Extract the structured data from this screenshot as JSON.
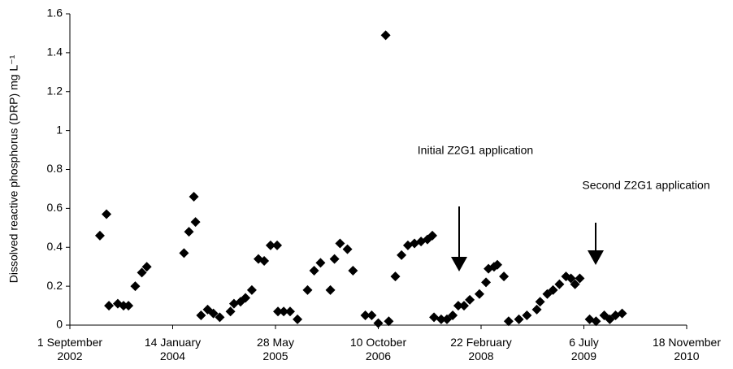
{
  "chart_data": {
    "type": "scatter",
    "y_label": "Dissolved reactive phosphorus (DRP) mg L⁻¹",
    "annotations": [
      "Initial Z2G1 application",
      "Second Z2G1 application"
    ],
    "color": "#000000",
    "grid": false,
    "x": [
      "2003-01-25",
      "2003-02-26",
      "2003-03-10",
      "2003-04-22",
      "2003-05-20",
      "2003-06-13",
      "2003-07-16",
      "2003-08-17",
      "2003-09-10",
      "2004-03-09",
      "2004-04-02",
      "2004-04-26",
      "2004-05-04",
      "2004-05-31",
      "2004-07-02",
      "2004-07-30",
      "2004-08-30",
      "2004-10-21",
      "2004-11-07",
      "2004-12-09",
      "2005-01-02",
      "2005-02-02",
      "2005-03-06",
      "2005-04-03",
      "2005-05-04",
      "2005-06-05",
      "2005-06-09",
      "2005-07-07",
      "2005-08-07",
      "2005-09-12",
      "2005-10-31",
      "2005-12-02",
      "2006-01-02",
      "2006-02-19",
      "2006-03-11",
      "2006-04-07",
      "2006-05-13",
      "2006-06-09",
      "2006-08-08",
      "2006-09-08",
      "2006-10-10",
      "2006-11-15",
      "2006-11-30",
      "2007-01-01",
      "2007-01-31",
      "2007-03-03",
      "2007-04-04",
      "2007-05-06",
      "2007-06-06",
      "2007-06-30",
      "2007-07-08",
      "2007-08-12",
      "2007-09-09",
      "2007-10-07",
      "2007-11-03",
      "2007-12-01",
      "2007-12-29",
      "2008-02-14",
      "2008-03-17",
      "2008-03-29",
      "2008-04-25",
      "2008-05-11",
      "2008-06-12",
      "2008-07-05",
      "2008-08-24",
      "2008-10-02",
      "2008-11-19",
      "2008-12-05",
      "2009-01-09",
      "2009-02-06",
      "2009-03-09",
      "2009-04-10",
      "2009-05-04",
      "2009-05-24",
      "2009-06-16",
      "2009-08-03",
      "2009-09-03",
      "2009-10-13",
      "2009-11-09",
      "2009-12-07",
      "2010-01-08"
    ],
    "values": [
      0.46,
      0.57,
      0.1,
      0.11,
      0.1,
      0.1,
      0.2,
      0.27,
      0.3,
      0.37,
      0.48,
      0.66,
      0.53,
      0.05,
      0.08,
      0.06,
      0.04,
      0.07,
      0.11,
      0.12,
      0.14,
      0.18,
      0.34,
      0.33,
      0.41,
      0.41,
      0.07,
      0.07,
      0.07,
      0.03,
      0.18,
      0.28,
      0.32,
      0.18,
      0.34,
      0.42,
      0.39,
      0.28,
      0.05,
      0.05,
      0.01,
      1.49,
      0.02,
      0.25,
      0.36,
      0.41,
      0.42,
      0.43,
      0.44,
      0.46,
      0.04,
      0.03,
      0.03,
      0.05,
      0.1,
      0.1,
      0.13,
      0.16,
      0.22,
      0.29,
      0.3,
      0.31,
      0.25,
      0.02,
      0.03,
      0.05,
      0.08,
      0.12,
      0.16,
      0.18,
      0.21,
      0.25,
      0.24,
      0.21,
      0.24,
      0.03,
      0.02,
      0.05,
      0.03,
      0.05,
      0.06
    ],
    "xlim": [
      "2002-09-01",
      "2010-11-18"
    ],
    "xticks": [
      {
        "value": "2002-09-01",
        "label": "1 September 2002"
      },
      {
        "value": "2004-01-14",
        "label": "14 January 2004"
      },
      {
        "value": "2005-05-28",
        "label": "28 May 2005"
      },
      {
        "value": "2006-10-10",
        "label": "10 October 2006"
      },
      {
        "value": "2008-02-22",
        "label": "22 February 2008"
      },
      {
        "value": "2009-07-06",
        "label": "6 July 2009"
      },
      {
        "value": "2010-11-18",
        "label": "18 November 2010"
      }
    ],
    "ylim": [
      0,
      1.6
    ],
    "yticks": [
      0,
      0.2,
      0.4,
      0.6,
      0.8,
      1,
      1.2,
      1.4,
      1.6
    ]
  }
}
